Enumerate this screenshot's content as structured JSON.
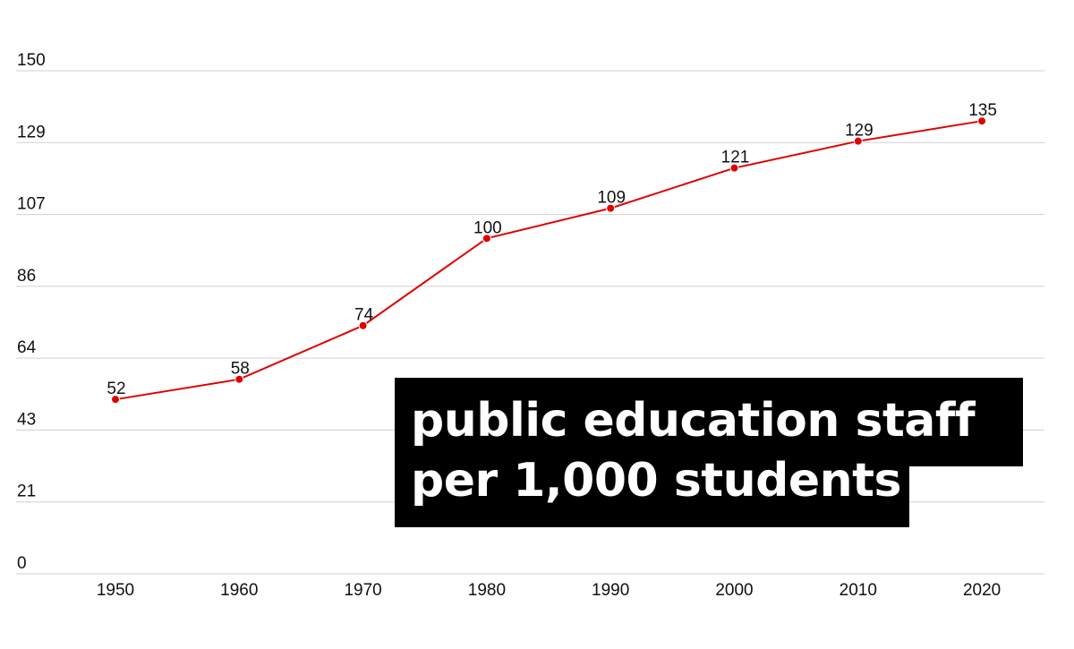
{
  "chart_data": {
    "type": "line",
    "title_lines": [
      "public education staff",
      "per 1,000 students"
    ],
    "x": [
      "1950",
      "1960",
      "1970",
      "1980",
      "1990",
      "2000",
      "2010",
      "2020"
    ],
    "values": [
      52,
      58,
      74,
      100,
      109,
      121,
      129,
      135
    ],
    "data_labels": [
      "52",
      "58",
      "74",
      "100",
      "109",
      "121",
      "129",
      "135"
    ],
    "yticks": [
      "0",
      "21",
      "43",
      "64",
      "86",
      "107",
      "129",
      "150"
    ],
    "ylim": [
      0,
      150
    ],
    "xlabel": "",
    "ylabel": "",
    "grid": "horizontal",
    "legend": "none",
    "line_color": "#e00000",
    "title_box_color": "#000000",
    "title_text_color": "#ffffff"
  }
}
